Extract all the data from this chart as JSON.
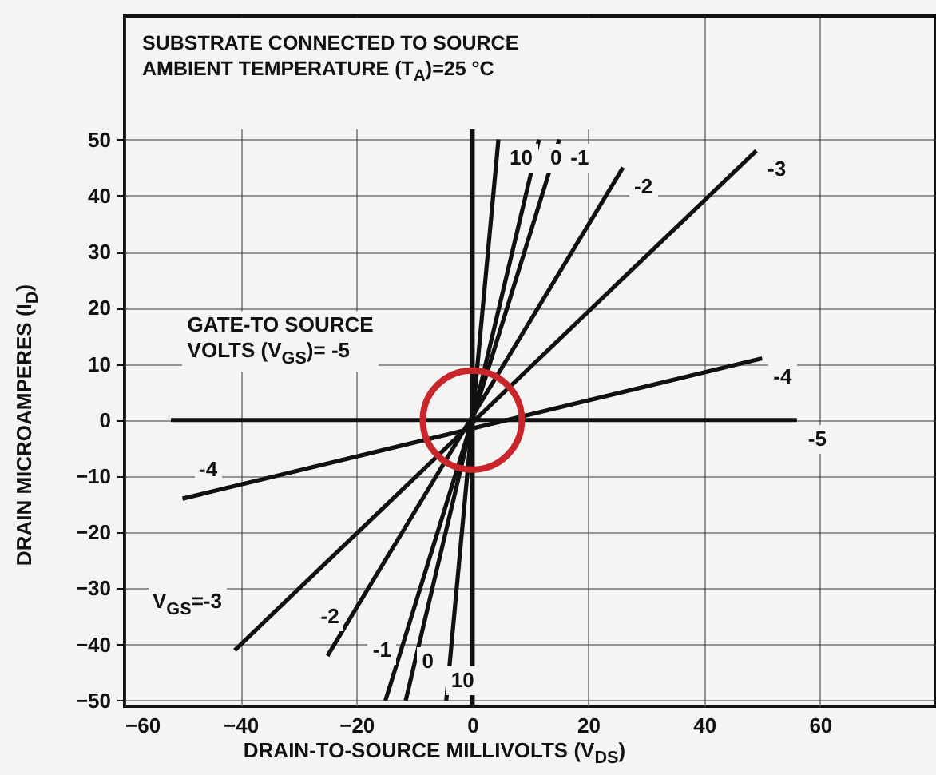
{
  "chart_data": {
    "type": "line",
    "xlabel": "DRAIN-TO-SOURCE MILLIVOLTS (V$_{DS}$)",
    "ylabel": "DRAIN MICROAMPERES (I$_{D}$)",
    "xlim": [
      -60,
      80
    ],
    "ylim": [
      -51,
      72
    ],
    "xticks": [
      -60,
      -40,
      -20,
      0,
      20,
      40,
      60
    ],
    "yticks": [
      -50,
      -40,
      -30,
      -20,
      -10,
      0,
      10,
      20,
      30,
      40,
      50
    ],
    "grid": true,
    "ref_lines": [
      {
        "axis": "x",
        "value": 0
      }
    ],
    "series": [
      {
        "name": "10",
        "color": "#111111",
        "x": [
          -4.5,
          4.5
        ],
        "values": [
          -50,
          50
        ]
      },
      {
        "name": "0",
        "color": "#111111",
        "x": [
          -11.5,
          11.5
        ],
        "values": [
          -50,
          50
        ]
      },
      {
        "name": "-1",
        "color": "#111111",
        "x": [
          -15,
          15
        ],
        "values": [
          -50,
          50
        ]
      },
      {
        "name": "-2",
        "color": "#111111",
        "x": [
          -25,
          26
        ],
        "values": [
          -42,
          45
        ]
      },
      {
        "name": "-3",
        "color": "#111111",
        "x": [
          -41,
          49
        ],
        "values": [
          -41,
          48
        ]
      },
      {
        "name": "-4",
        "color": "#111111",
        "x": [
          -50,
          50
        ],
        "values": [
          -14,
          11
        ]
      },
      {
        "name": "-5",
        "color": "#111111",
        "x": [
          -52,
          56
        ],
        "values": [
          0,
          0
        ]
      }
    ],
    "annotations": [
      "SUBSTRATE CONNECTED TO SOURCE\nAMBIENT TEMPERATURE (T$_{A}$)=25 °C",
      "GATE-TO SOURCE\nVOLTS (V$_{GS}$)= -5",
      "V$_{GS}$=-3",
      "-4",
      "-2",
      "-1",
      "0",
      "10"
    ]
  }
}
